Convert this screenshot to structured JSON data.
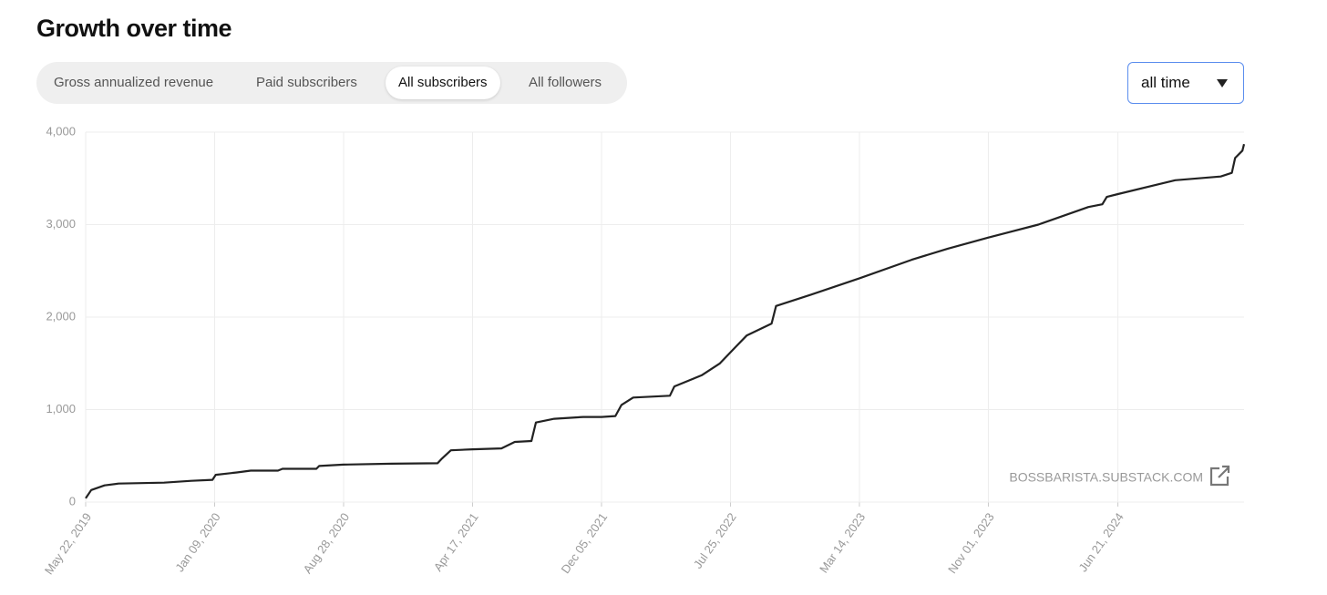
{
  "header": {
    "title": "Growth over time"
  },
  "tabs": [
    "Gross annualized revenue",
    "Paid subscribers",
    "All subscribers",
    "All followers"
  ],
  "dropdown": "all time",
  "chart_data": {
    "type": "line",
    "watermark": "BOSSBARISTA.SUBSTACK.COM",
    "x": [
      "2019-05-22",
      "2019-06-01",
      "2019-06-25",
      "2019-07-20",
      "2019-10-10",
      "2019-11-28",
      "2020-01-05",
      "2020-01-11",
      "2020-02-18",
      "2020-03-14",
      "2020-05-02",
      "2020-05-10",
      "2020-07-10",
      "2020-07-15",
      "2020-08-28",
      "2020-11-23",
      "2021-02-13",
      "2021-02-21",
      "2021-03-09",
      "2021-04-17",
      "2021-06-08",
      "2021-07-02",
      "2021-08-01",
      "2021-08-09",
      "2021-09-11",
      "2021-11-02",
      "2021-12-05",
      "2021-12-30",
      "2022-01-10",
      "2022-01-31",
      "2022-04-07",
      "2022-04-15",
      "2022-06-03",
      "2022-07-06",
      "2022-07-25",
      "2022-08-23",
      "2022-10-07",
      "2022-10-15",
      "2022-12-16",
      "2023-03-14",
      "2023-06-16",
      "2023-08-20",
      "2023-11-01",
      "2024-01-30",
      "2024-04-29",
      "2024-05-24",
      "2024-06-01",
      "2024-06-21",
      "2024-10-02",
      "2024-12-23",
      "2025-01-12",
      "2025-01-18",
      "2025-01-31",
      "2025-02-03"
    ],
    "series": [
      {
        "name": "All subscribers",
        "color": "#222222",
        "values": [
          40,
          130,
          180,
          200,
          210,
          230,
          240,
          295,
          320,
          340,
          340,
          360,
          360,
          390,
          405,
          415,
          420,
          470,
          560,
          570,
          580,
          650,
          660,
          860,
          900,
          920,
          920,
          930,
          1050,
          1130,
          1150,
          1250,
          1370,
          1500,
          1620,
          1800,
          1930,
          2120,
          2240,
          2420,
          2620,
          2740,
          2860,
          3000,
          3190,
          3220,
          3300,
          3330,
          3480,
          3520,
          3560,
          3720,
          3800,
          3870
        ]
      }
    ],
    "xlim": [
      "2019-05-22",
      "2025-02-03"
    ],
    "xticks": [
      {
        "value": "2019-05-22",
        "label": "May 22, 2019"
      },
      {
        "value": "2020-01-09",
        "label": "Jan 09, 2020"
      },
      {
        "value": "2020-08-28",
        "label": "Aug 28, 2020"
      },
      {
        "value": "2021-04-17",
        "label": "Apr 17, 2021"
      },
      {
        "value": "2021-12-05",
        "label": "Dec 05, 2021"
      },
      {
        "value": "2022-07-25",
        "label": "Jul 25, 2022"
      },
      {
        "value": "2023-03-14",
        "label": "Mar 14, 2023"
      },
      {
        "value": "2023-11-01",
        "label": "Nov 01, 2023"
      },
      {
        "value": "2024-06-21",
        "label": "Jun 21, 2024"
      }
    ],
    "ylim": [
      0,
      4000
    ],
    "yticks": [
      0,
      {
        "value": 1000,
        "label": "1,000"
      },
      {
        "value": 2000,
        "label": "2,000"
      },
      {
        "value": 3000,
        "label": "3,000"
      },
      {
        "value": 4000,
        "label": "4,000"
      }
    ],
    "grid": true
  }
}
